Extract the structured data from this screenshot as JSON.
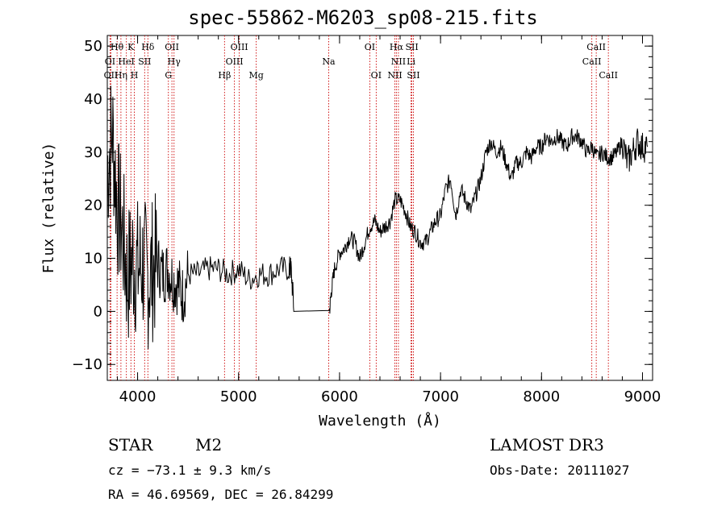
{
  "chart_data": {
    "type": "line",
    "title": "spec-55862-M6203_sp08-215.fits",
    "xlabel": "Wavelength (Å)",
    "ylabel": "Flux (relative)",
    "xlim": [
      3700,
      9100
    ],
    "ylim": [
      -13,
      52
    ],
    "xticks": [
      4000,
      5000,
      6000,
      7000,
      8000,
      9000
    ],
    "yticks": [
      -10,
      0,
      10,
      20,
      30,
      40,
      50
    ],
    "series": [
      {
        "name": "flux",
        "x": [
          3700,
          3750,
          3800,
          3850,
          3900,
          3950,
          4000,
          4050,
          4100,
          4150,
          4200,
          4250,
          4300,
          4350,
          4400,
          4450,
          4500,
          4600,
          4700,
          4800,
          4900,
          5000,
          5100,
          5200,
          5300,
          5400,
          5500,
          5520,
          5550,
          5900,
          5920,
          5950,
          6000,
          6050,
          6100,
          6150,
          6200,
          6250,
          6300,
          6350,
          6400,
          6450,
          6500,
          6550,
          6600,
          6650,
          6700,
          6750,
          6800,
          6850,
          6900,
          6950,
          7000,
          7050,
          7100,
          7150,
          7200,
          7250,
          7300,
          7350,
          7400,
          7450,
          7500,
          7550,
          7600,
          7650,
          7700,
          7750,
          7800,
          7850,
          7900,
          7950,
          8000,
          8050,
          8100,
          8150,
          8200,
          8250,
          8300,
          8350,
          8400,
          8450,
          8500,
          8550,
          8600,
          8650,
          8700,
          8750,
          8800,
          8850,
          8900,
          8950,
          9000,
          9050
        ],
        "y": [
          27,
          34,
          20,
          15,
          6,
          10,
          8,
          9,
          6,
          8,
          9,
          7,
          8,
          6,
          5,
          3,
          7,
          7,
          8,
          8,
          7,
          8,
          6,
          7,
          7,
          8,
          8,
          8,
          0,
          0,
          4,
          8,
          11,
          12,
          14,
          13,
          10,
          13,
          16,
          17,
          15,
          16,
          17,
          21,
          21,
          19,
          16,
          15,
          13,
          13,
          15,
          17,
          18,
          23,
          25,
          18,
          23,
          21,
          19,
          22,
          25,
          30,
          32,
          30,
          31,
          28,
          25,
          28,
          28,
          30,
          29,
          31,
          31,
          33,
          32,
          33,
          32,
          31,
          33,
          33,
          32,
          30,
          31,
          29,
          30,
          29,
          29,
          30,
          32,
          28,
          30,
          32,
          31,
          31
        ]
      }
    ],
    "lines": [
      {
        "label": "Hθ",
        "x": 3797,
        "row": 0
      },
      {
        "label": "K",
        "x": 3934,
        "row": 0
      },
      {
        "label": "Hδ",
        "x": 4102,
        "row": 0
      },
      {
        "label": "OII",
        "x": 4340,
        "row": 0
      },
      {
        "label": "OIII",
        "x": 5007,
        "row": 0
      },
      {
        "label": "OI",
        "x": 6300,
        "row": 0
      },
      {
        "label": "Hα",
        "x": 6563,
        "row": 0
      },
      {
        "label": "SII",
        "x": 6716,
        "row": 0
      },
      {
        "label": "CaII",
        "x": 8542,
        "row": 0
      },
      {
        "label": "OI",
        "x": 3727,
        "row": 1
      },
      {
        "label": "HeI",
        "x": 3889,
        "row": 1
      },
      {
        "label": "SII",
        "x": 4070,
        "row": 1
      },
      {
        "label": "Hγ",
        "x": 4361,
        "row": 1
      },
      {
        "label": "OIII",
        "x": 4959,
        "row": 1
      },
      {
        "label": "Na",
        "x": 5893,
        "row": 1
      },
      {
        "label": "NII",
        "x": 6583,
        "row": 1
      },
      {
        "label": "Li",
        "x": 6708,
        "row": 1
      },
      {
        "label": "CaII",
        "x": 8498,
        "row": 1
      },
      {
        "label": "OII",
        "x": 3736,
        "row": 2
      },
      {
        "label": "Hη",
        "x": 3835,
        "row": 2
      },
      {
        "label": "H",
        "x": 3968,
        "row": 2
      },
      {
        "label": "G",
        "x": 4305,
        "row": 2
      },
      {
        "label": "Hβ",
        "x": 4861,
        "row": 2
      },
      {
        "label": "Mg",
        "x": 5175,
        "row": 2
      },
      {
        "label": "OI",
        "x": 6363,
        "row": 2
      },
      {
        "label": "NII",
        "x": 6548,
        "row": 2
      },
      {
        "label": "SII",
        "x": 6731,
        "row": 2
      },
      {
        "label": "CaII",
        "x": 8662,
        "row": 2
      }
    ]
  },
  "info": {
    "object_class": "STAR",
    "subclass": "M2",
    "survey": "LAMOST DR3",
    "cz": "cz = −73.1 ± 9.3 km/s",
    "obs_date": "Obs-Date: 20111027",
    "coords": "RA =  46.69569, DEC =  26.84299"
  },
  "colors": {
    "axis": "#000000",
    "flux": "#000000",
    "line_marker": "#cc0000"
  }
}
